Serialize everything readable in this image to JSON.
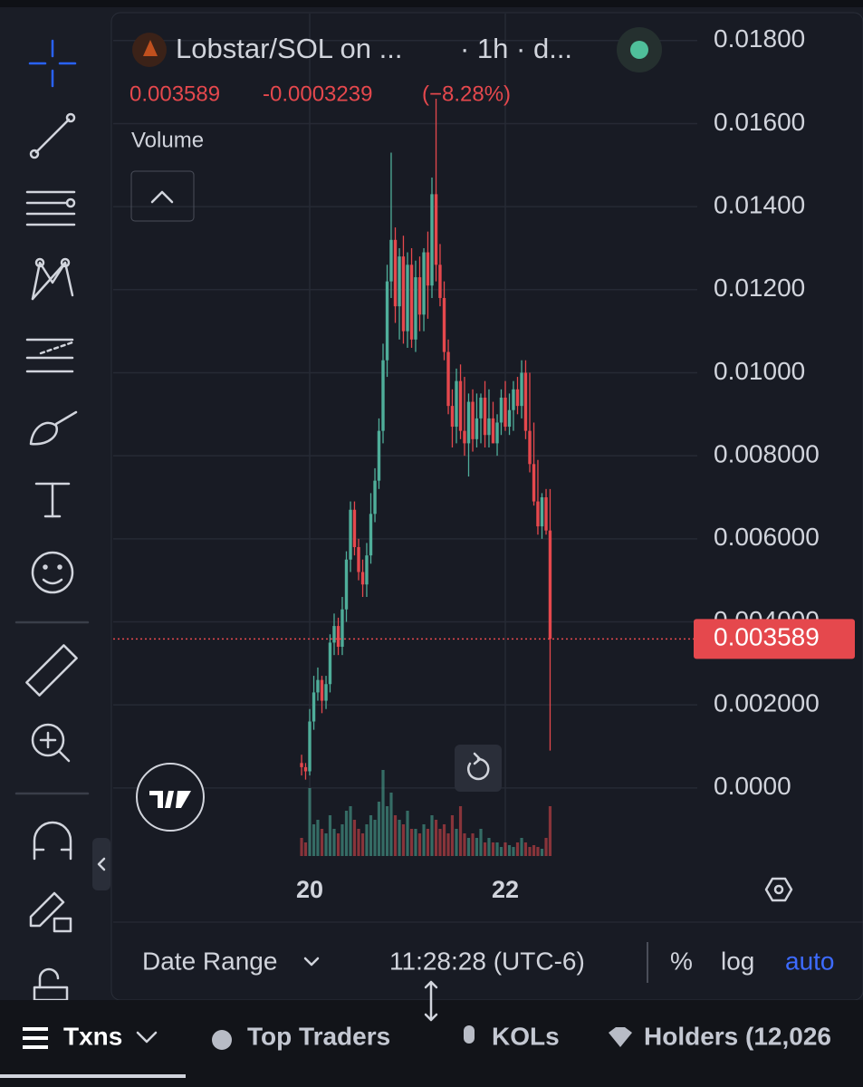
{
  "header": {
    "pair": "Lobstar/SOL on ...",
    "interval": "· 1h · d...",
    "change": "-0.0003239",
    "change_pct": "(−8.28%)",
    "volume_label": "Volume"
  },
  "chart_data": {
    "type": "candlestick",
    "x": [
      19.917,
      19.958,
      20,
      20.042,
      20.083,
      20.125,
      20.167,
      20.208,
      20.25,
      20.292,
      20.333,
      20.375,
      20.417,
      20.458,
      20.5,
      20.542,
      20.583,
      20.625,
      20.667,
      20.708,
      20.75,
      20.792,
      20.833,
      20.875,
      20.917,
      20.958,
      21,
      21.042,
      21.083,
      21.125,
      21.167,
      21.208,
      21.25,
      21.292,
      21.333,
      21.375,
      21.417,
      21.458,
      21.5,
      21.542,
      21.583,
      21.625,
      21.667,
      21.708,
      21.75,
      21.792,
      21.833,
      21.875,
      21.917,
      21.958,
      22,
      22.042,
      22.083,
      22.125,
      22.167,
      22.208,
      22.25,
      22.292,
      22.333,
      22.375,
      22.417,
      22.458
    ],
    "open": [
      0.0006,
      0.0005,
      0.0004,
      0.0016,
      0.0023,
      0.0026,
      0.0021,
      0.0025,
      0.0035,
      0.0039,
      0.0034,
      0.0043,
      0.0055,
      0.0067,
      0.0058,
      0.0052,
      0.0049,
      0.0056,
      0.0066,
      0.0074,
      0.0086,
      0.0103,
      0.0122,
      0.0132,
      0.0116,
      0.0128,
      0.011,
      0.0126,
      0.0108,
      0.0123,
      0.0114,
      0.0129,
      0.0121,
      0.0143,
      0.0126,
      0.0118,
      0.0105,
      0.0092,
      0.0087,
      0.0098,
      0.0086,
      0.0083,
      0.0093,
      0.0084,
      0.0089,
      0.0094,
      0.0085,
      0.0089,
      0.0083,
      0.0088,
      0.0094,
      0.0087,
      0.0091,
      0.0096,
      0.0092,
      0.01,
      0.0086,
      0.0078,
      0.0069,
      0.0063,
      0.007,
      0.0062
    ],
    "high": [
      0.0008,
      0.0006,
      0.0019,
      0.0027,
      0.0029,
      0.0027,
      0.0027,
      0.0037,
      0.0042,
      0.0041,
      0.0046,
      0.0057,
      0.0069,
      0.0069,
      0.006,
      0.0055,
      0.0059,
      0.0071,
      0.0077,
      0.0089,
      0.0107,
      0.0126,
      0.0153,
      0.0135,
      0.013,
      0.0133,
      0.0129,
      0.013,
      0.0127,
      0.0128,
      0.013,
      0.0134,
      0.0147,
      0.0166,
      0.0131,
      0.0122,
      0.0108,
      0.0096,
      0.0101,
      0.0102,
      0.0099,
      0.0095,
      0.0096,
      0.0095,
      0.0095,
      0.0098,
      0.0096,
      0.0093,
      0.009,
      0.0096,
      0.0098,
      0.0095,
      0.0098,
      0.0099,
      0.0103,
      0.0103,
      0.01,
      0.0088,
      0.0079,
      0.0071,
      0.0072,
      0.0072
    ],
    "low": [
      0.0003,
      0.0002,
      0.0003,
      0.0014,
      0.0021,
      0.0018,
      0.0019,
      0.0023,
      0.0032,
      0.0032,
      0.0032,
      0.004,
      0.0052,
      0.0056,
      0.005,
      0.0046,
      0.0046,
      0.0054,
      0.0064,
      0.0072,
      0.0083,
      0.0099,
      0.0118,
      0.0112,
      0.0108,
      0.0107,
      0.0106,
      0.0106,
      0.0105,
      0.011,
      0.011,
      0.0113,
      0.0118,
      0.0122,
      0.0116,
      0.0103,
      0.009,
      0.0082,
      0.0083,
      0.0084,
      0.008,
      0.0075,
      0.0081,
      0.0082,
      0.0083,
      0.0082,
      0.0082,
      0.0083,
      0.008,
      0.0085,
      0.0086,
      0.0085,
      0.0086,
      0.009,
      0.0089,
      0.0084,
      0.0076,
      0.0068,
      0.0061,
      0.006,
      0.0061,
      0.0009
    ],
    "close": [
      0.0005,
      0.0004,
      0.0016,
      0.0023,
      0.0026,
      0.0021,
      0.0025,
      0.0035,
      0.0039,
      0.0034,
      0.0043,
      0.0055,
      0.0067,
      0.0058,
      0.0052,
      0.0049,
      0.0056,
      0.0066,
      0.0074,
      0.0086,
      0.0103,
      0.0122,
      0.0132,
      0.0116,
      0.0128,
      0.011,
      0.0126,
      0.0108,
      0.0123,
      0.0114,
      0.0129,
      0.0121,
      0.0143,
      0.0126,
      0.0118,
      0.0105,
      0.0092,
      0.0087,
      0.0098,
      0.0086,
      0.0083,
      0.0093,
      0.0084,
      0.0089,
      0.0094,
      0.0085,
      0.0089,
      0.0083,
      0.0088,
      0.0094,
      0.0087,
      0.0091,
      0.0096,
      0.0092,
      0.01,
      0.0086,
      0.0078,
      0.0069,
      0.0063,
      0.007,
      0.0062,
      0.003589
    ],
    "volume": [
      20,
      15,
      75,
      35,
      40,
      30,
      25,
      45,
      30,
      25,
      35,
      50,
      55,
      40,
      30,
      25,
      35,
      45,
      40,
      60,
      95,
      55,
      70,
      45,
      40,
      35,
      50,
      30,
      30,
      25,
      35,
      30,
      45,
      40,
      30,
      35,
      25,
      45,
      30,
      55,
      25,
      20,
      25,
      20,
      30,
      15,
      20,
      15,
      15,
      10,
      15,
      12,
      10,
      15,
      20,
      15,
      10,
      12,
      10,
      8,
      20,
      55
    ],
    "up_color": "#4fae9a",
    "down_color": "#e5484d",
    "xlim": [
      18,
      24
    ],
    "xticks": [
      20,
      22
    ],
    "ylim": [
      -0.00164,
      0.01865
    ],
    "yticks": [
      {
        "value": 0,
        "label": "0.0000"
      },
      {
        "value": 0.002,
        "label": "0.002000"
      },
      {
        "value": 0.004,
        "label": "0.004000"
      },
      {
        "value": 0.006,
        "label": "0.006000"
      },
      {
        "value": 0.008,
        "label": "0.008000"
      },
      {
        "value": 0.01,
        "label": "0.01000"
      },
      {
        "value": 0.012,
        "label": "0.01200"
      },
      {
        "value": 0.014,
        "label": "0.01400"
      },
      {
        "value": 0.016,
        "label": "0.01600"
      },
      {
        "value": 0.018,
        "label": "0.01800"
      }
    ],
    "grid": true
  },
  "footer": {
    "date_range": "Date Range",
    "time": "11:28:28 (UTC-6)",
    "percent": "%",
    "log": "log",
    "auto": "auto"
  },
  "tabs": [
    "Txns",
    "Top Traders",
    "KOLs",
    "Holders (12,026"
  ]
}
